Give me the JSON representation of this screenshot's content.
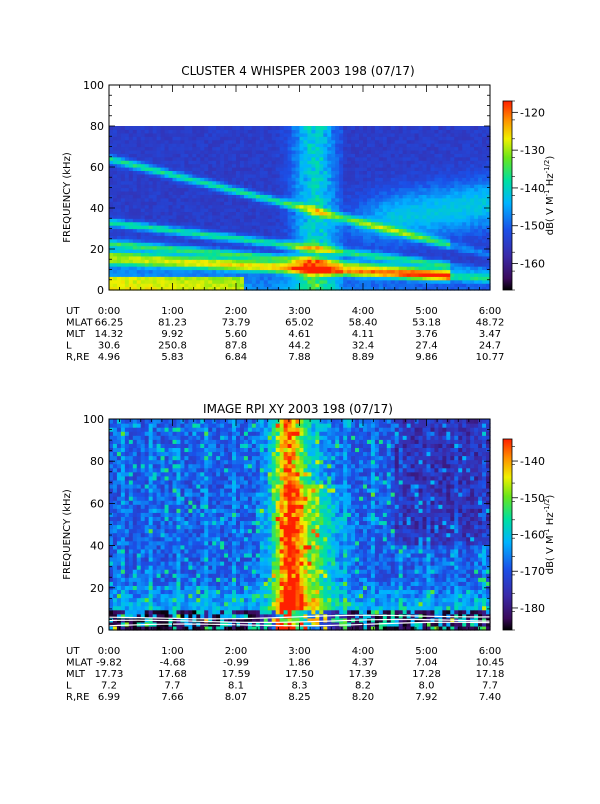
{
  "chart_data": [
    {
      "type": "heatmap",
      "title": "CLUSTER 4 WHISPER 2003 198 (07/17)",
      "ylabel": "FREQUENCY (kHz)",
      "ylim": [
        0,
        100
      ],
      "yticks": [
        "0",
        "20",
        "40",
        "60",
        "80",
        "100"
      ],
      "colorbar": {
        "label_pre": "dB( V M",
        "label_exp1": "-1",
        "label_mid": " Hz",
        "label_exp2": "-1/2",
        "label_post": ")",
        "range": [
          -167,
          -117
        ],
        "ticks": [
          "-120",
          "-130",
          "-140",
          "-150",
          "-160"
        ]
      },
      "data_max_frequency_khz": 80,
      "ephemeris_labels": [
        "UT",
        "MLAT",
        "MLT",
        "L",
        "R,RE"
      ],
      "ephemeris_columns": [
        [
          "0:00",
          "66.25",
          "14.32",
          "30.6",
          "4.96"
        ],
        [
          "1:00",
          "81.23",
          "9.92",
          "250.8",
          "5.83"
        ],
        [
          "2:00",
          "73.79",
          "5.60",
          "87.8",
          "6.84"
        ],
        [
          "3:00",
          "65.02",
          "4.61",
          "44.2",
          "7.88"
        ],
        [
          "4:00",
          "58.40",
          "4.11",
          "32.4",
          "8.89"
        ],
        [
          "5:00",
          "53.18",
          "3.76",
          "27.4",
          "9.86"
        ],
        [
          "6:00",
          "48.72",
          "3.47",
          "24.7",
          "10.77"
        ]
      ]
    },
    {
      "type": "heatmap",
      "title": "IMAGE RPI XY 2003 198 (07/17)",
      "ylabel": "FREQUENCY (kHz)",
      "ylim": [
        0,
        100
      ],
      "yticks": [
        "0",
        "20",
        "40",
        "60",
        "80",
        "100"
      ],
      "colorbar": {
        "label_pre": "dB( V M",
        "label_exp1": "-1",
        "label_mid": " Hz",
        "label_exp2": "-1/2",
        "label_post": ")",
        "range": [
          -186,
          -134
        ],
        "ticks": [
          "-140",
          "-150",
          "-160",
          "-170",
          "-180"
        ]
      },
      "ephemeris_labels": [
        "UT",
        "MLAT",
        "MLT",
        "L",
        "R,RE"
      ],
      "ephemeris_columns": [
        [
          "0:00",
          "-9.82",
          "17.73",
          "7.2",
          "6.99"
        ],
        [
          "1:00",
          "-4.68",
          "17.68",
          "7.7",
          "7.66"
        ],
        [
          "2:00",
          "-0.99",
          "17.59",
          "8.1",
          "8.07"
        ],
        [
          "3:00",
          "1.86",
          "17.50",
          "8.3",
          "8.25"
        ],
        [
          "4:00",
          "4.37",
          "17.39",
          "8.2",
          "8.20"
        ],
        [
          "5:00",
          "7.04",
          "17.28",
          "8.0",
          "7.92"
        ],
        [
          "6:00",
          "10.45",
          "17.18",
          "7.7",
          "7.40"
        ]
      ]
    }
  ]
}
